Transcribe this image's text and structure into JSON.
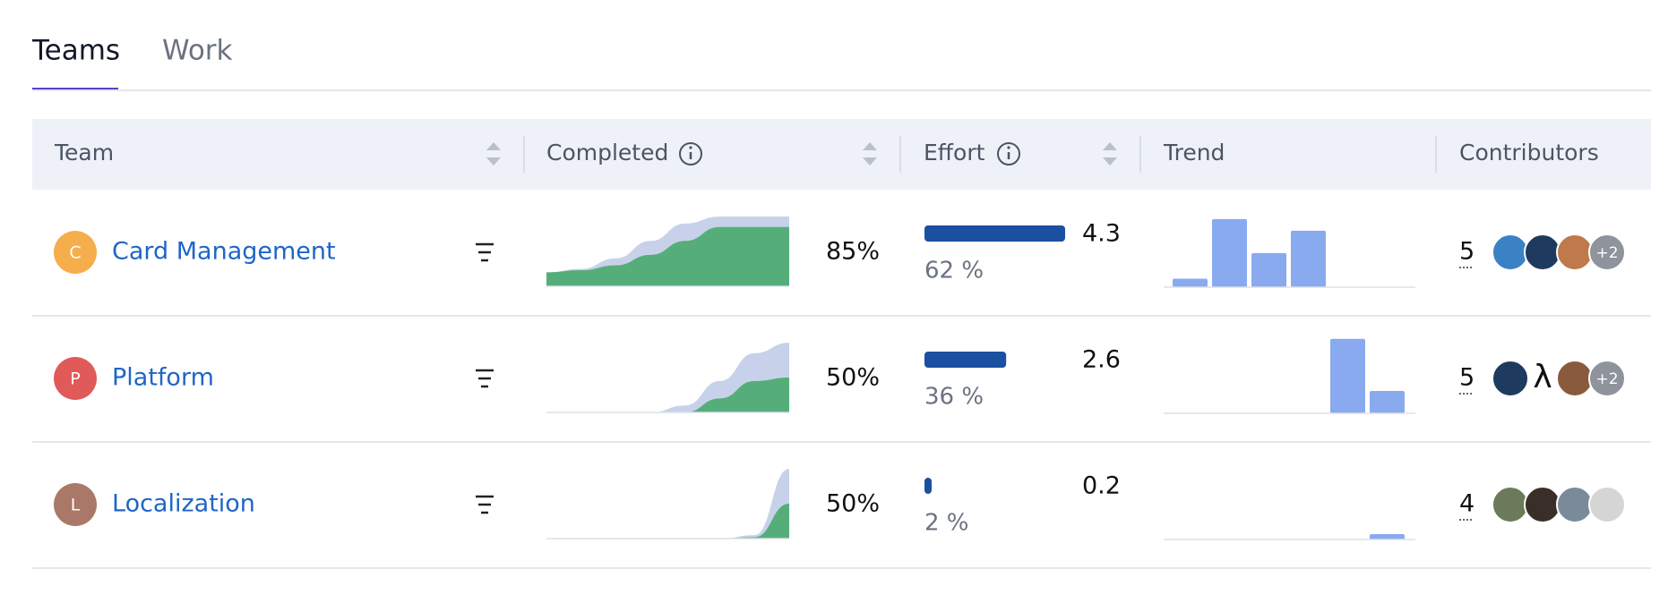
{
  "tabs": [
    "Teams",
    "Work"
  ],
  "table": {
    "headers": [
      "Team",
      "Completed",
      "Effort",
      "Trend",
      "Contributors"
    ],
    "rows": [
      {
        "initial": "C",
        "name": "Card Management",
        "completed": "85%",
        "effort_value": "4.3",
        "effort_percent": "62 %",
        "effort_bar": 62,
        "completed_total": [
          20,
          25,
          40,
          65,
          90,
          100,
          100,
          100
        ],
        "completed_done": [
          20,
          23,
          30,
          45,
          65,
          85,
          85,
          85
        ],
        "trend": [
          8,
          64,
          32,
          53,
          0,
          0
        ],
        "contributors": "5",
        "more": "+2"
      },
      {
        "initial": "P",
        "name": "Platform",
        "completed": "50%",
        "effort_value": "2.6",
        "effort_percent": "36 %",
        "effort_bar": 36,
        "completed_total": [
          0,
          0,
          0,
          0,
          10,
          45,
          85,
          100
        ],
        "completed_done": [
          0,
          0,
          0,
          0,
          0,
          20,
          45,
          50
        ],
        "trend": [
          0,
          0,
          0,
          0,
          70,
          21
        ],
        "contributors": "5",
        "symbol_avatar": "λ",
        "more": "+2"
      },
      {
        "initial": "L",
        "name": "Localization",
        "completed": "50%",
        "effort_value": "0.2",
        "effort_percent": "2 %",
        "effort_bar": 2,
        "completed_total": [
          0,
          0,
          0,
          0,
          0,
          0,
          5,
          100
        ],
        "completed_done": [
          0,
          0,
          0,
          0,
          0,
          0,
          2,
          50
        ],
        "trend": [
          0,
          0,
          0,
          0,
          0,
          5
        ],
        "contributors": "4"
      }
    ]
  }
}
